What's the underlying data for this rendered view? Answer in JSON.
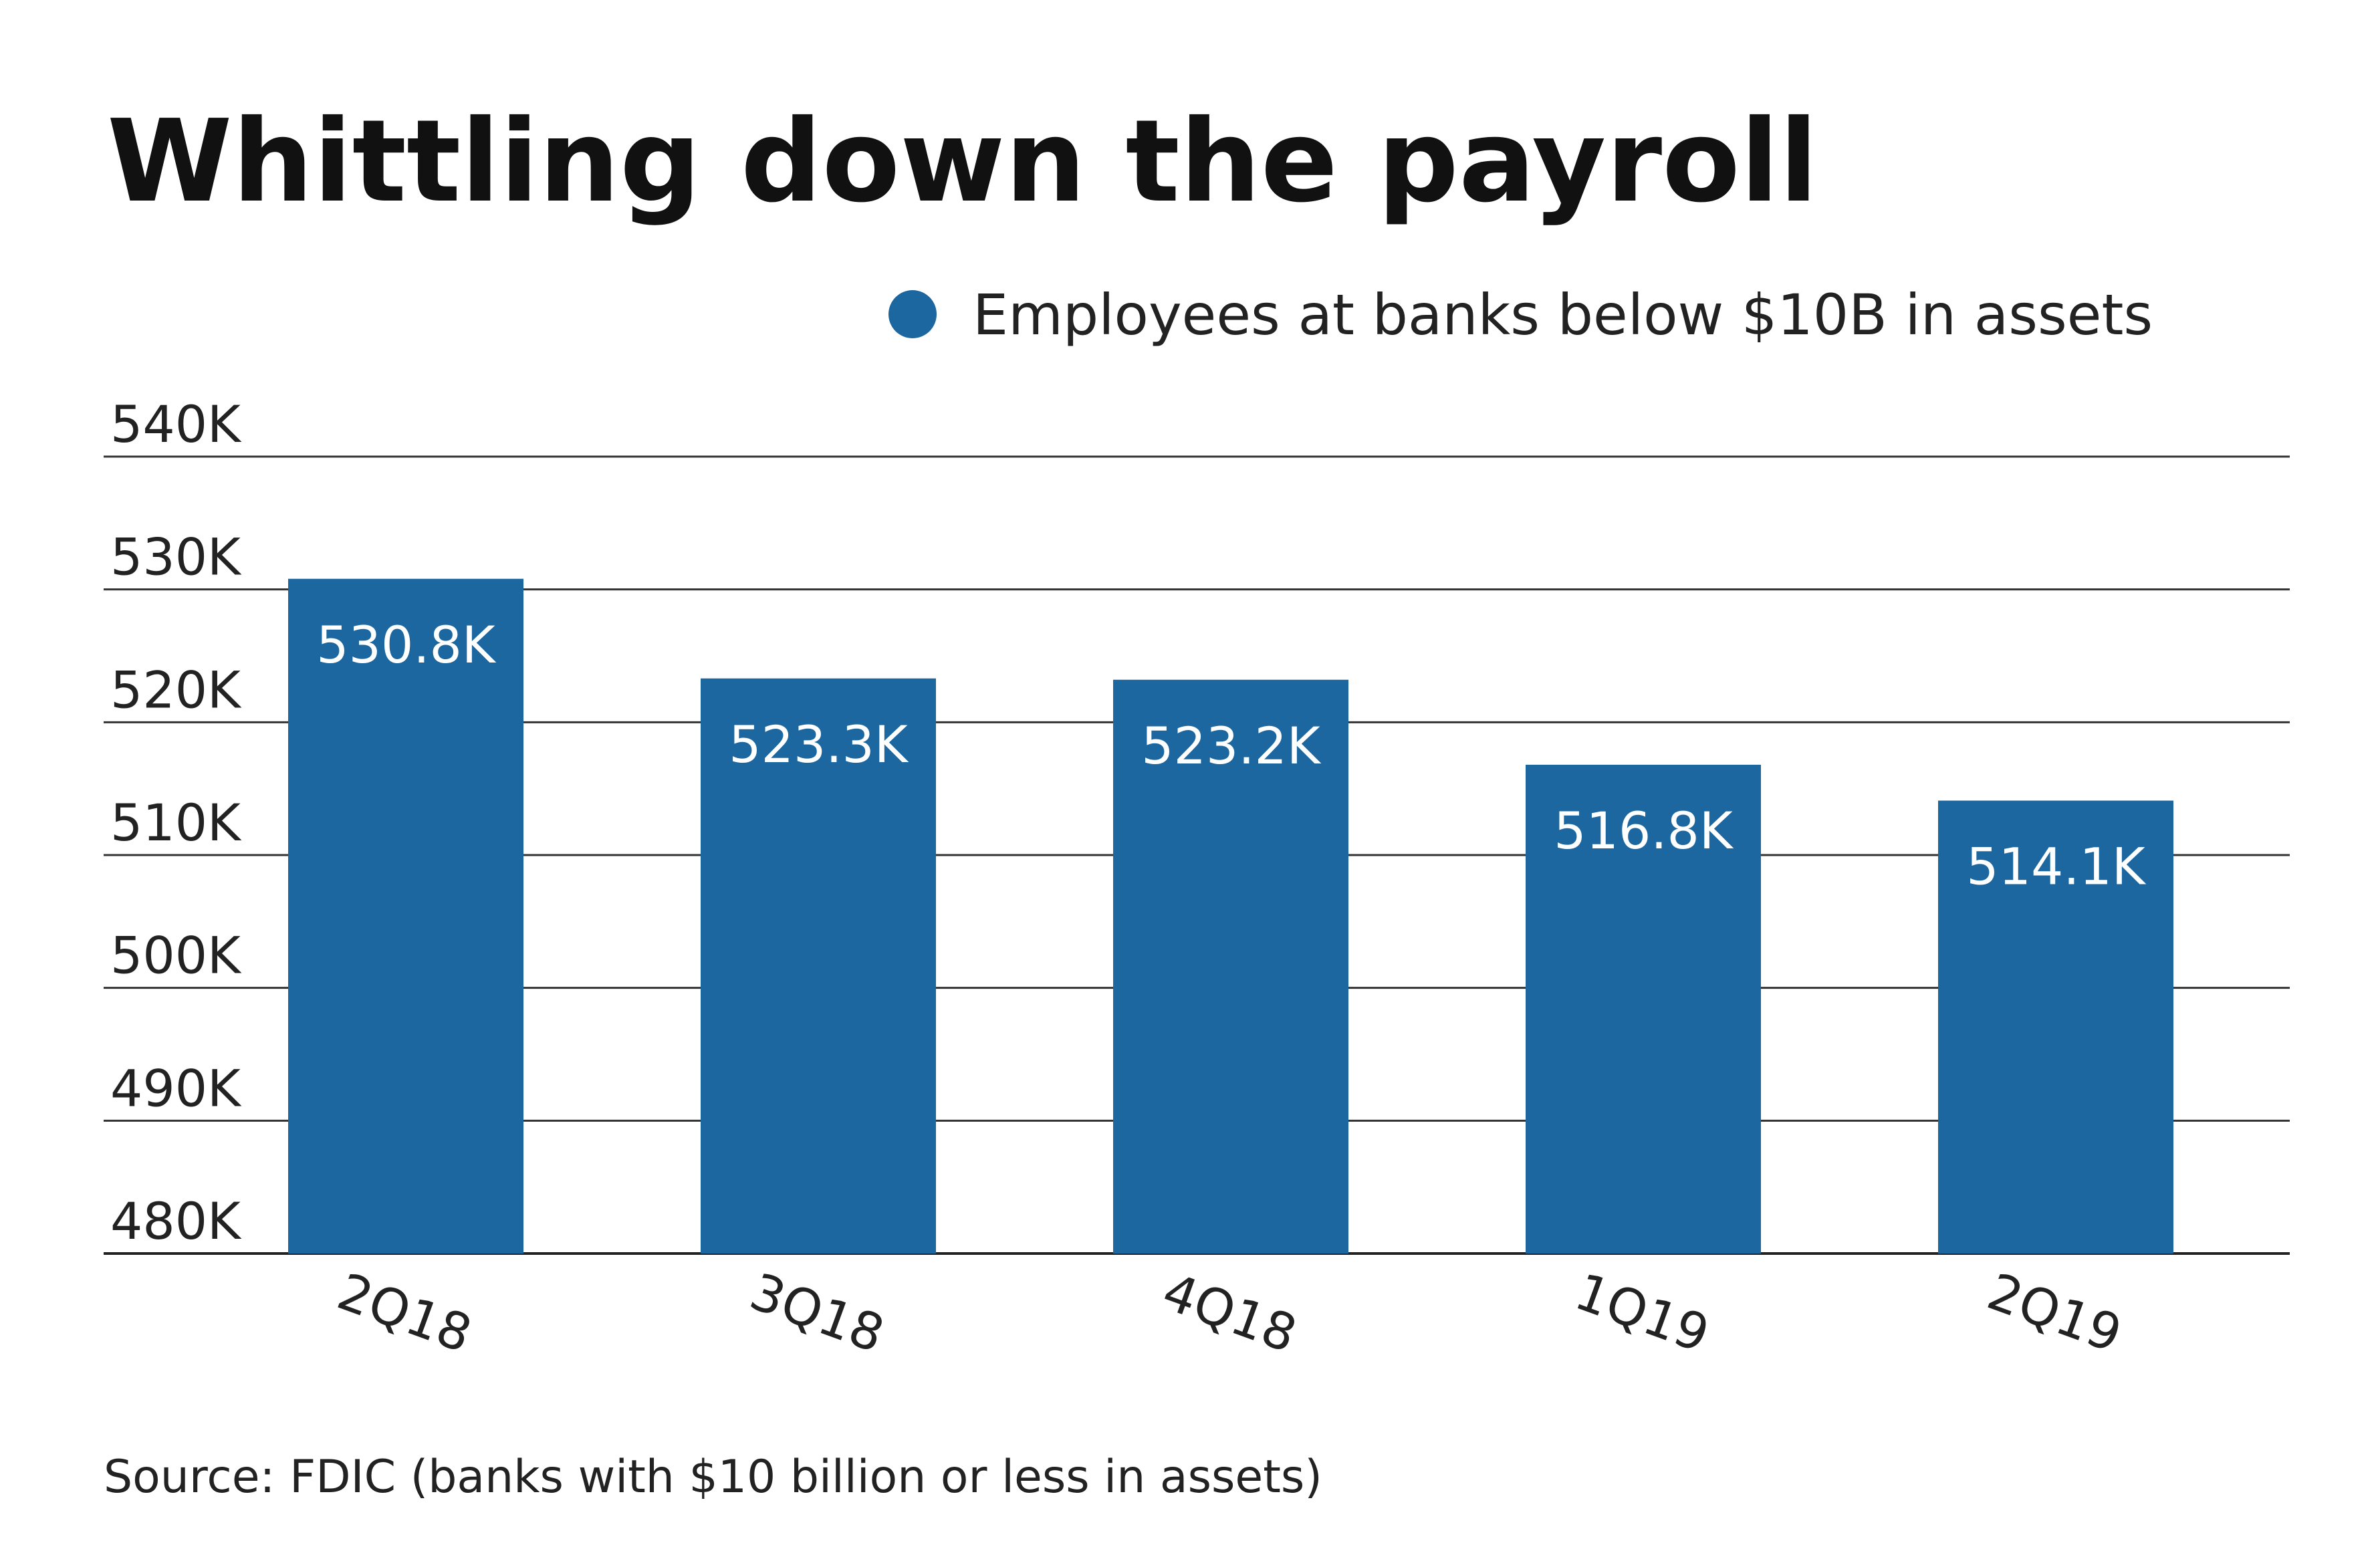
{
  "chart_data": {
    "type": "bar",
    "title": "Whittling down the payroll",
    "categories": [
      "2Q18",
      "3Q18",
      "4Q18",
      "1Q19",
      "2Q19"
    ],
    "series": [
      {
        "name": "Employees at banks below $10B in assets",
        "values": [
          530.8,
          523.3,
          523.2,
          516.8,
          514.1
        ],
        "labels": [
          "530.8K",
          "523.3K",
          "523.2K",
          "516.8K",
          "514.1K"
        ],
        "color": "#1c67a0"
      }
    ],
    "ylim": [
      480,
      540
    ],
    "yticks": [
      480,
      490,
      500,
      510,
      520,
      530,
      540
    ],
    "ytick_labels": [
      "480K",
      "490K",
      "500K",
      "510K",
      "520K",
      "530K",
      "540K"
    ],
    "xlabel": "",
    "ylabel": "",
    "grid": true,
    "legend_position": "top-right",
    "x_tick_rotation_deg": 20,
    "source": "Source: FDIC (banks with $10 billion or less in assets)"
  }
}
